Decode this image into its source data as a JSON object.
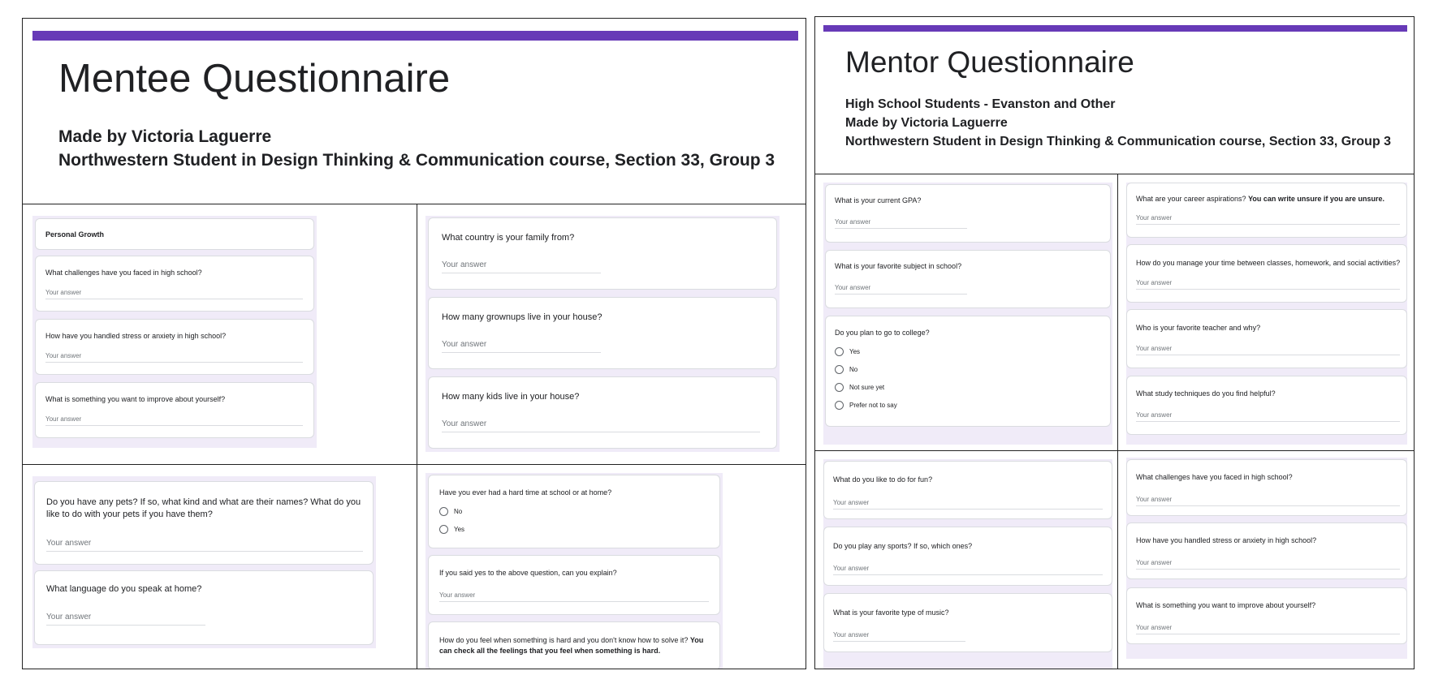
{
  "mentee": {
    "title": "Mentee Questionnaire",
    "subtitle_line1": "Made by Victoria Laguerre",
    "subtitle_line2": "Northwestern Student in Design Thinking & Communication course, Section 33, Group 3",
    "section_title": "Personal Growth",
    "answer_placeholder": "Your answer",
    "q_challenges": "What challenges have you faced in high school?",
    "q_stress": "How have you handled stress or anxiety in high school?",
    "q_improve": "What is something you want to improve about yourself?",
    "q_country": "What country is your family from?",
    "q_grownups": "How many grownups live in your house?",
    "q_kids": "How many kids live in your house?",
    "q_pets": "Do you have any pets? If so, what kind and what are their names? What do you like to do with your pets if you have them?",
    "q_language": "What language do you speak at home?",
    "q_hardtime": "Have you ever had a hard time at school or at home?",
    "opt_no": "No",
    "opt_yes": "Yes",
    "q_explain": "If you said yes to the above question, can you explain?",
    "q_feel_part1": "How do you feel when something is hard and you don't know how to solve it?",
    "q_feel_part2": "You can check all the feelings that you feel when something is hard."
  },
  "mentor": {
    "title": "Mentor Questionnaire",
    "subtitle_line1": "High School Students - Evanston and Other",
    "subtitle_line2": "Made by Victoria Laguerre",
    "subtitle_line3": "Northwestern Student in Design Thinking & Communication course, Section 33, Group 3",
    "answer_placeholder": "Your answer",
    "q_gpa": "What is your current GPA?",
    "q_subject": "What is your favorite subject in school?",
    "q_college": "Do you plan to go to college?",
    "opt_yes": "Yes",
    "opt_no": "No",
    "opt_notsure": "Not sure yet",
    "opt_prefer": "Prefer not to say",
    "q_career_part1": "What are your career aspirations?",
    "q_career_part2": "You can write unsure if you are unsure.",
    "q_time": "How do you manage your time between classes, homework, and social activities?",
    "q_teacher": "Who is your favorite teacher and why?",
    "q_study": "What study techniques do you find helpful?",
    "q_fun": "What do you like to do for fun?",
    "q_sports": "Do you play any sports? If so, which ones?",
    "q_music": "What is your favorite type of music?",
    "q_challenges": "What challenges have you faced in high school?",
    "q_stress": "How have you handled stress or anxiety in high school?",
    "q_improve": "What is something you want to improve about yourself?"
  },
  "colors": {
    "accent": "#673ab7",
    "lavender": "#f0ebf8"
  }
}
